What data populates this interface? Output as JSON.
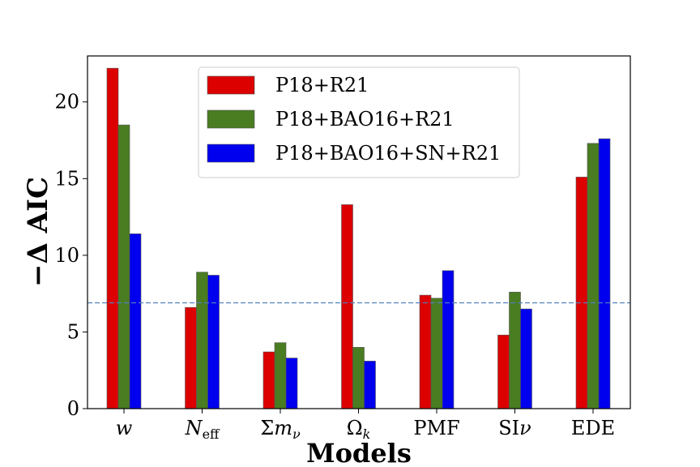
{
  "chart_data": {
    "type": "bar",
    "xlabel": "Models",
    "ylabel": "−Δ AIC",
    "ylim": [
      0,
      23
    ],
    "yticks": [
      "0",
      "5",
      "10",
      "15",
      "20"
    ],
    "categories": [
      "w",
      "N_eff",
      "Σm_ν",
      "Ω_k",
      "PMF",
      "SIν",
      "EDE"
    ],
    "series": [
      {
        "name": "P18+R21",
        "color": "#dd0000",
        "values": [
          22.2,
          6.6,
          3.7,
          13.3,
          7.4,
          4.8,
          15.1
        ]
      },
      {
        "name": "P18+BAO16+R21",
        "color": "#4a7c22",
        "values": [
          18.5,
          8.9,
          4.3,
          4.0,
          7.2,
          7.6,
          17.3
        ]
      },
      {
        "name": "P18+BAO16+SN+R21",
        "color": "#0000ee",
        "values": [
          11.4,
          8.7,
          3.3,
          3.1,
          9.0,
          6.5,
          17.6
        ]
      }
    ],
    "reference_line": {
      "value": 6.9,
      "color": "#4f81bd",
      "style": "dashed"
    },
    "legend_position": "top-center",
    "grid": false
  }
}
